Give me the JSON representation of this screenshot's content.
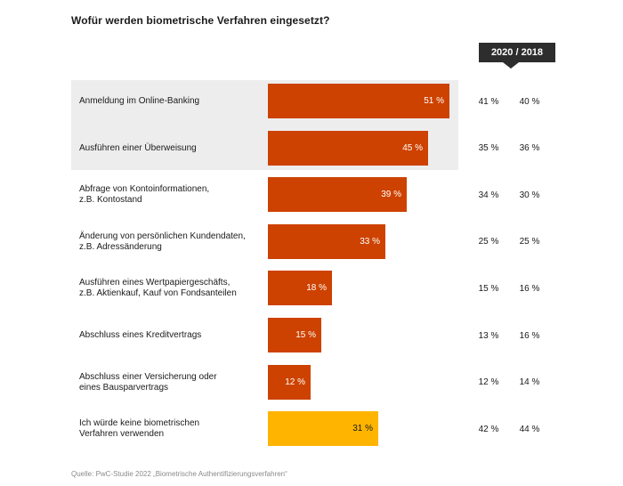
{
  "chart_data": {
    "type": "bar",
    "orientation": "horizontal",
    "title": "Wofür werden biometrische Verfahren eingesetzt?",
    "year_header": "2020 / 2018",
    "categories": [
      "Anmeldung im Online-Banking",
      "Ausführen einer Überweisung",
      "Abfrage von Kontoinformationen,\nz.B. Kontostand",
      "Änderung von persönlichen Kundendaten,\nz.B. Adressänderung",
      "Ausführen eines Wertpapiergeschäfts,\nz.B. Aktienkauf, Kauf von Fondsanteilen",
      "Abschluss eines Kreditvertrags",
      "Abschluss einer Versicherung oder\neines Bausparvertrags",
      "Ich würde keine biometrischen\nVerfahren verwenden"
    ],
    "values": [
      51,
      45,
      39,
      33,
      18,
      15,
      12,
      31
    ],
    "value_labels": [
      "51 %",
      "45 %",
      "39 %",
      "33 %",
      "18 %",
      "15 %",
      "12 %",
      "31 %"
    ],
    "values_2020_labels": [
      "41 %",
      "35 %",
      "34 %",
      "25 %",
      "15 %",
      "13 %",
      "12 %",
      "42 %"
    ],
    "values_2018_labels": [
      "40 %",
      "36 %",
      "30 %",
      "25 %",
      "16 %",
      "16 %",
      "14 %",
      "44 %"
    ],
    "values_2020": [
      41,
      35,
      34,
      25,
      15,
      13,
      12,
      42
    ],
    "values_2018": [
      40,
      36,
      30,
      25,
      16,
      16,
      14,
      44
    ],
    "highlighted_rows": [
      0,
      1
    ],
    "alt_color_rows": [
      7
    ],
    "xlim": [
      0,
      100
    ],
    "colors": {
      "bar": "#cd4200",
      "bar_alt": "#ffb500",
      "highlight": "#ededed",
      "header": "#2d2d2d"
    }
  },
  "source": "Quelle: PwC-Studie 2022 „Biometrische Authentifizierungsverfahren“"
}
